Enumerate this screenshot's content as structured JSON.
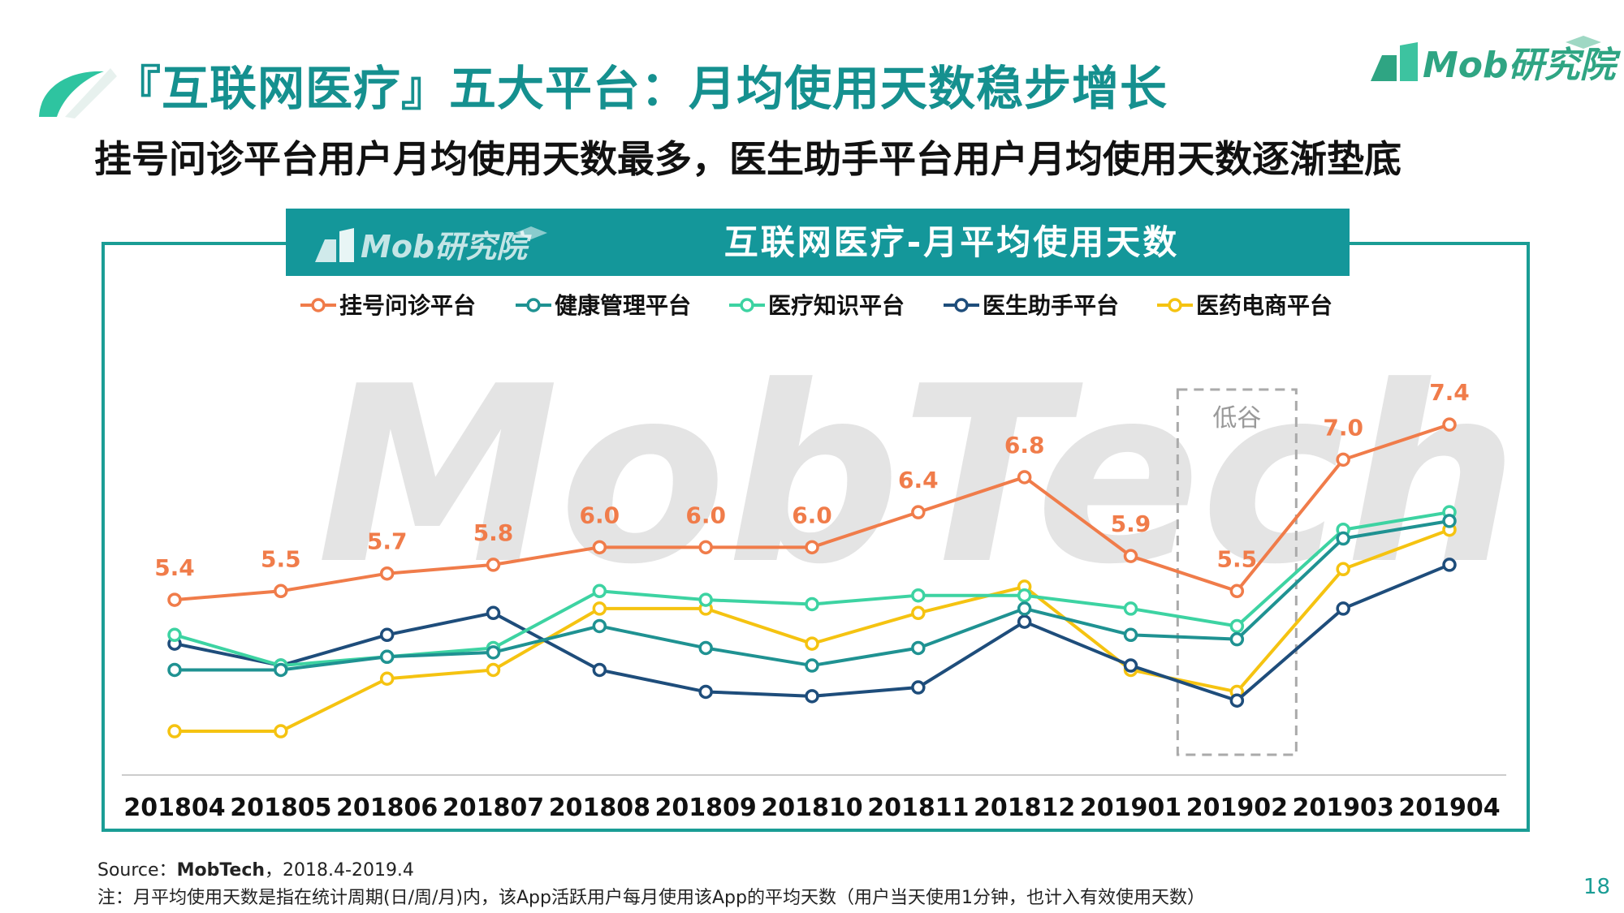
{
  "page": {
    "title": "『互联网医疗』五大平台：月均使用天数稳步增长",
    "subtitle": "挂号问诊平台用户月均使用天数最多，医生助手平台用户月均使用天数逐渐垫底",
    "logo_text": "Mob研究院",
    "watermark": "MobTech",
    "source_label": "Source：",
    "source_name": "MobTech",
    "source_range": "，2018.4-2019.4",
    "note": "注：月平均使用天数是指在统计周期(日/周/月)内，该App活跃用户每月使用该App的平均天数（用户当天使用1分钟，也计入有效使用天数）",
    "page_number": "18"
  },
  "colors": {
    "brand": "#15908f",
    "header_bg": "#14979a",
    "frame": "#1a9d95",
    "axis": "#cccccc",
    "lowpoint_box": "#aaaaaa"
  },
  "chart_data": {
    "type": "line",
    "title": "互联网医疗-月平均使用天数",
    "x": [
      "201804",
      "201805",
      "201806",
      "201807",
      "201808",
      "201809",
      "201810",
      "201811",
      "201812",
      "201901",
      "201902",
      "201903",
      "201904"
    ],
    "ylim": [
      3.4,
      7.8
    ],
    "grid": false,
    "legend_position": "top",
    "series": [
      {
        "name": "挂号问诊平台",
        "color": "#f07c4a",
        "labels": true,
        "values": [
          5.4,
          5.5,
          5.7,
          5.8,
          6.0,
          6.0,
          6.0,
          6.4,
          6.8,
          5.9,
          5.5,
          7.0,
          7.4
        ]
      },
      {
        "name": "健康管理平台",
        "color": "#1f9292",
        "labels": false,
        "values": [
          4.6,
          4.6,
          4.75,
          4.8,
          5.1,
          4.85,
          4.65,
          4.85,
          5.3,
          5.0,
          4.95,
          6.1,
          6.3
        ]
      },
      {
        "name": "医疗知识平台",
        "color": "#3dd3a2",
        "labels": false,
        "values": [
          5.0,
          4.65,
          4.75,
          4.85,
          5.5,
          5.4,
          5.35,
          5.45,
          5.45,
          5.3,
          5.1,
          6.2,
          6.4
        ]
      },
      {
        "name": "医生助手平台",
        "color": "#1e4d7b",
        "labels": false,
        "values": [
          4.9,
          4.65,
          5.0,
          5.25,
          4.6,
          4.35,
          4.3,
          4.4,
          5.15,
          4.65,
          4.25,
          5.3,
          5.8
        ]
      },
      {
        "name": "医药电商平台",
        "color": "#f5c311",
        "labels": false,
        "values": [
          3.9,
          3.9,
          4.5,
          4.6,
          5.3,
          5.3,
          4.9,
          5.25,
          5.55,
          4.6,
          4.35,
          5.75,
          6.2
        ]
      }
    ],
    "annotation": {
      "label": "低谷",
      "x": "201902"
    }
  }
}
